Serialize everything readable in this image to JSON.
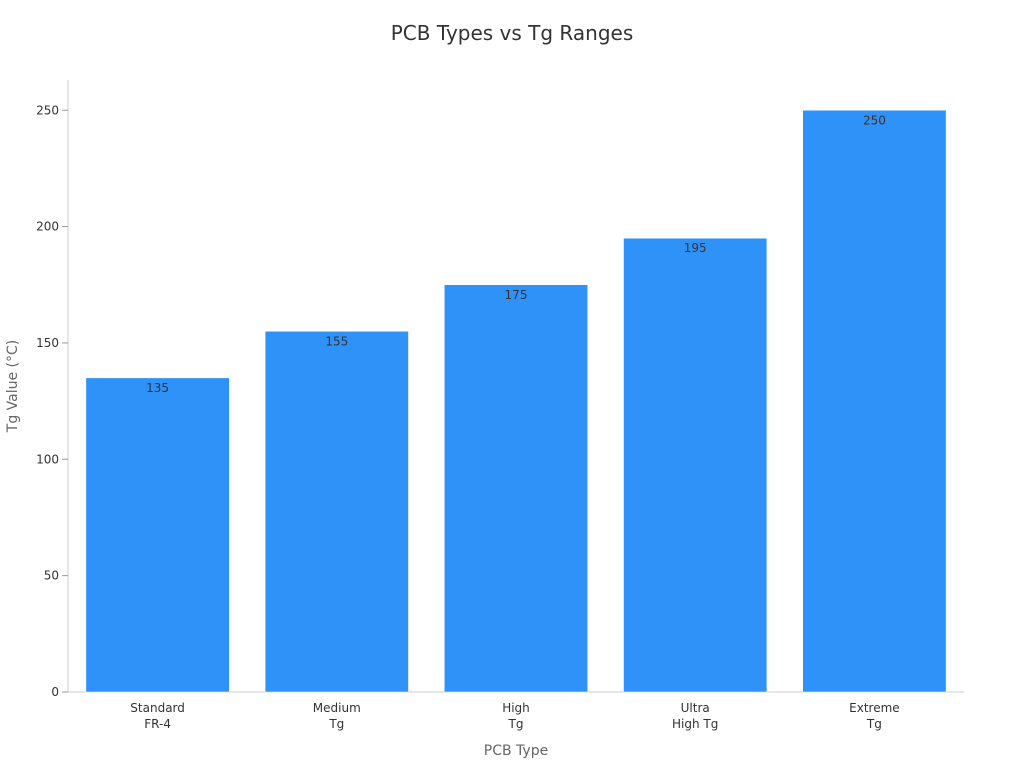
{
  "chart_data": {
    "type": "bar",
    "title": "PCB Types vs Tg Ranges",
    "xlabel": "PCB Type",
    "ylabel": "Tg Value (°C)",
    "categories": [
      [
        "Standard",
        "FR-4"
      ],
      [
        "Medium",
        "Tg"
      ],
      [
        "High",
        "Tg"
      ],
      [
        "Ultra",
        "High Tg"
      ],
      [
        "Extreme",
        "Tg"
      ]
    ],
    "values": [
      135,
      155,
      175,
      195,
      250
    ],
    "data_labels": [
      "135",
      "155",
      "175",
      "195",
      "250"
    ],
    "ylim": [
      0,
      263
    ],
    "yticks": [
      0,
      50,
      100,
      150,
      200,
      250
    ],
    "ytick_labels": [
      "0",
      "50",
      "100",
      "150",
      "200",
      "250"
    ],
    "grid": false,
    "legend": "none",
    "bar_color": "#2f92f8"
  }
}
